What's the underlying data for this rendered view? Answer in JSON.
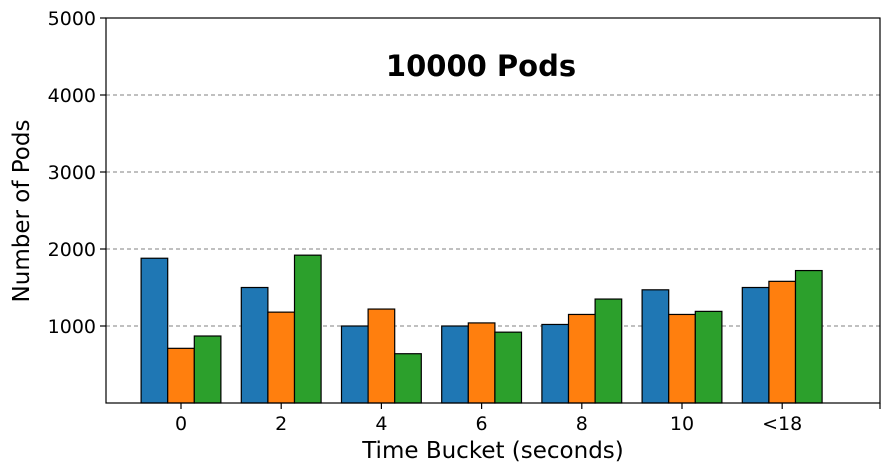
{
  "chart_data": {
    "type": "bar",
    "title": "10000 Pods",
    "xlabel": "Time Bucket (seconds)",
    "ylabel": "Number of Pods",
    "categories": [
      "0",
      "2",
      "4",
      "6",
      "8",
      "10",
      "<18"
    ],
    "ylim": [
      0,
      5000
    ],
    "yticks": [
      1000,
      2000,
      3000,
      4000,
      5000
    ],
    "grid": "horizontal dashed",
    "series": [
      {
        "color": "#1f77b4",
        "values": [
          1880,
          1500,
          1000,
          1000,
          1020,
          1470,
          1500
        ]
      },
      {
        "color": "#ff7f0e",
        "values": [
          710,
          1180,
          1220,
          1040,
          1150,
          1150,
          1580
        ]
      },
      {
        "color": "#2ca02c",
        "values": [
          870,
          1920,
          640,
          920,
          1350,
          1190,
          1720
        ]
      }
    ]
  }
}
